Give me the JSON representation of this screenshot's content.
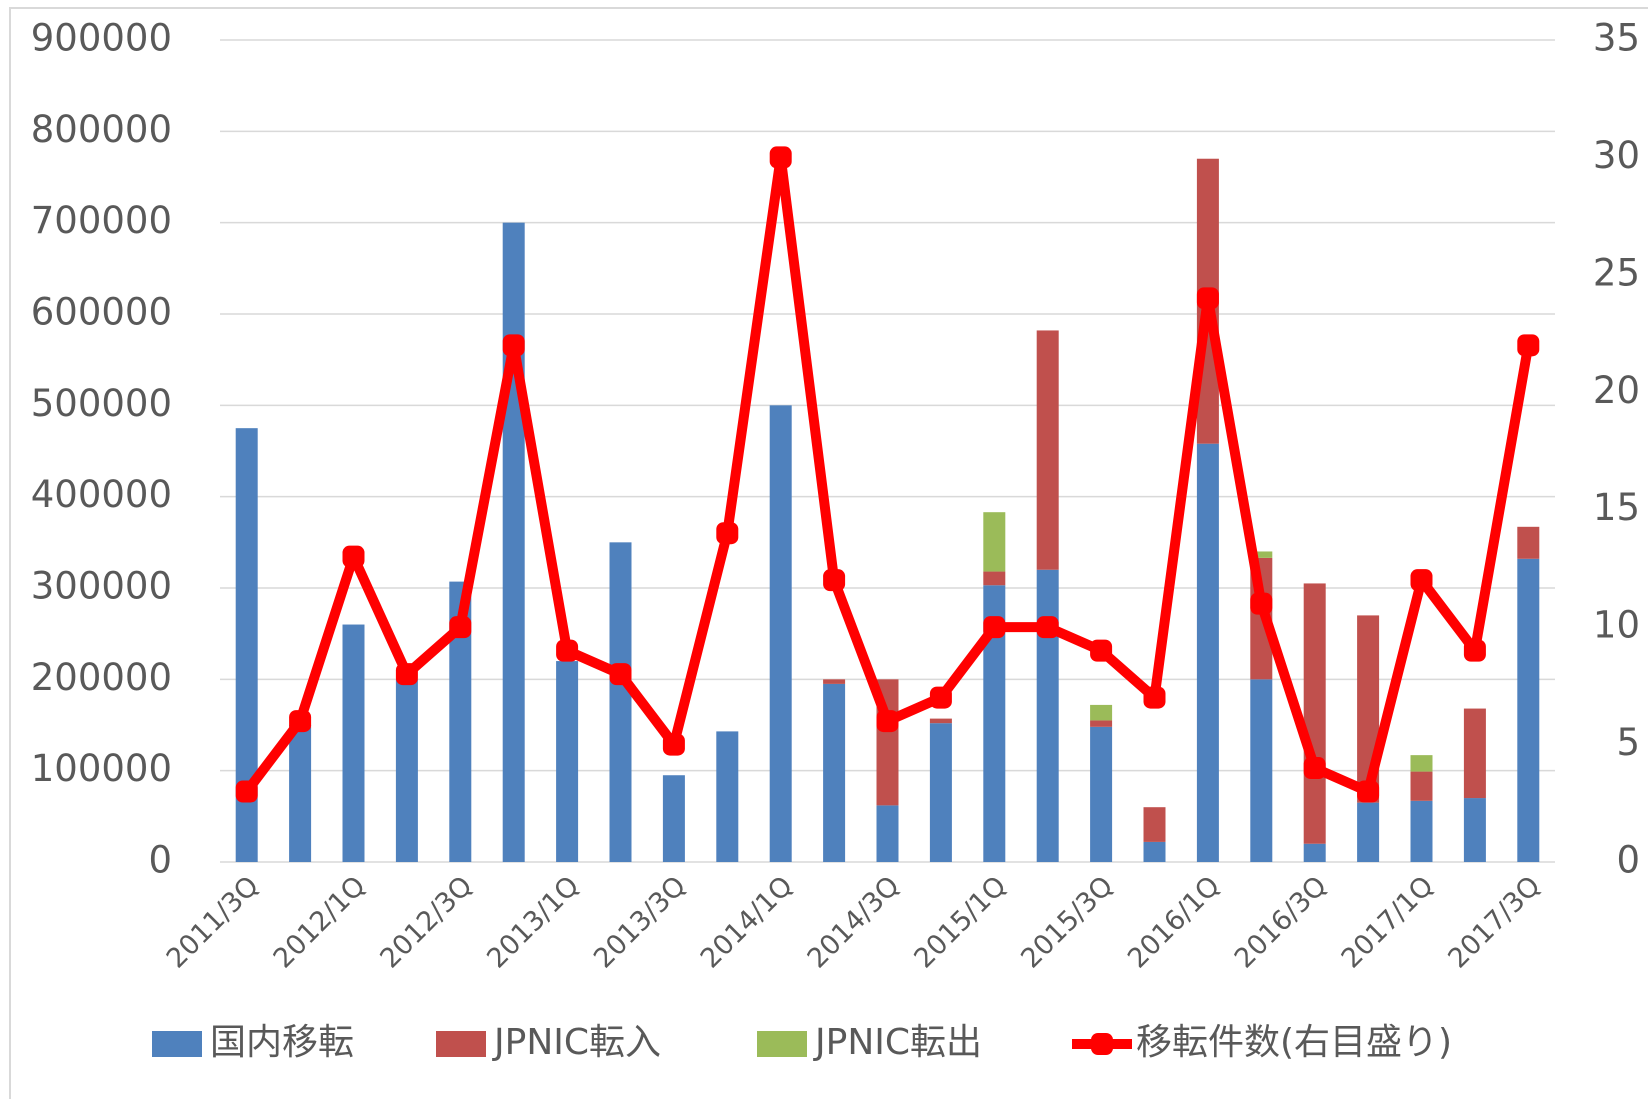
{
  "chart_data": {
    "type": "bar",
    "categories": [
      "2011/3Q",
      null,
      "2012/1Q",
      null,
      "2012/3Q",
      null,
      "2013/1Q",
      null,
      "2013/3Q",
      null,
      "2014/1Q",
      null,
      "2014/3Q",
      null,
      "2015/1Q",
      null,
      "2015/3Q",
      null,
      "2016/1Q",
      null,
      "2016/3Q",
      null,
      "2017/1Q",
      null,
      "2017/3Q"
    ],
    "stacked": true,
    "series": [
      {
        "name": "国内移転",
        "type": "bar",
        "color": "#4f81bd",
        "values": [
          475000,
          150000,
          260000,
          200000,
          307000,
          700000,
          220000,
          350000,
          95000,
          143000,
          500000,
          195000,
          62000,
          152000,
          303000,
          320000,
          148000,
          22000,
          458000,
          200000,
          20000,
          65000,
          67000,
          70000,
          332000
        ]
      },
      {
        "name": "JPNIC転入",
        "type": "bar",
        "color": "#c0504d",
        "values": [
          0,
          0,
          0,
          0,
          0,
          0,
          0,
          0,
          0,
          0,
          0,
          5000,
          138000,
          5000,
          15000,
          262000,
          7000,
          38000,
          312000,
          133000,
          285000,
          205000,
          32000,
          98000,
          35000
        ]
      },
      {
        "name": "JPNIC転出",
        "type": "bar",
        "color": "#9bbb59",
        "values": [
          0,
          0,
          0,
          0,
          0,
          0,
          0,
          0,
          0,
          0,
          0,
          0,
          0,
          0,
          65000,
          0,
          17000,
          0,
          0,
          7000,
          0,
          0,
          18000,
          0,
          0
        ]
      },
      {
        "name": "移転件数(右目盛り)",
        "type": "line",
        "axis": "y2",
        "color": "#ff0000",
        "values": [
          3,
          6,
          13,
          8,
          10,
          22,
          9,
          8,
          5,
          14,
          30,
          12,
          6,
          7,
          10,
          10,
          9,
          7,
          24,
          11,
          4,
          3,
          12,
          9,
          22
        ]
      }
    ],
    "ylim": [
      0,
      900000
    ],
    "yticks": [
      0,
      100000,
      200000,
      300000,
      400000,
      500000,
      600000,
      700000,
      800000,
      900000
    ],
    "y2lim": [
      0,
      35
    ],
    "y2ticks": [
      0,
      5,
      10,
      15,
      20,
      25,
      30,
      35
    ],
    "grid": true,
    "legend": "bottom"
  }
}
